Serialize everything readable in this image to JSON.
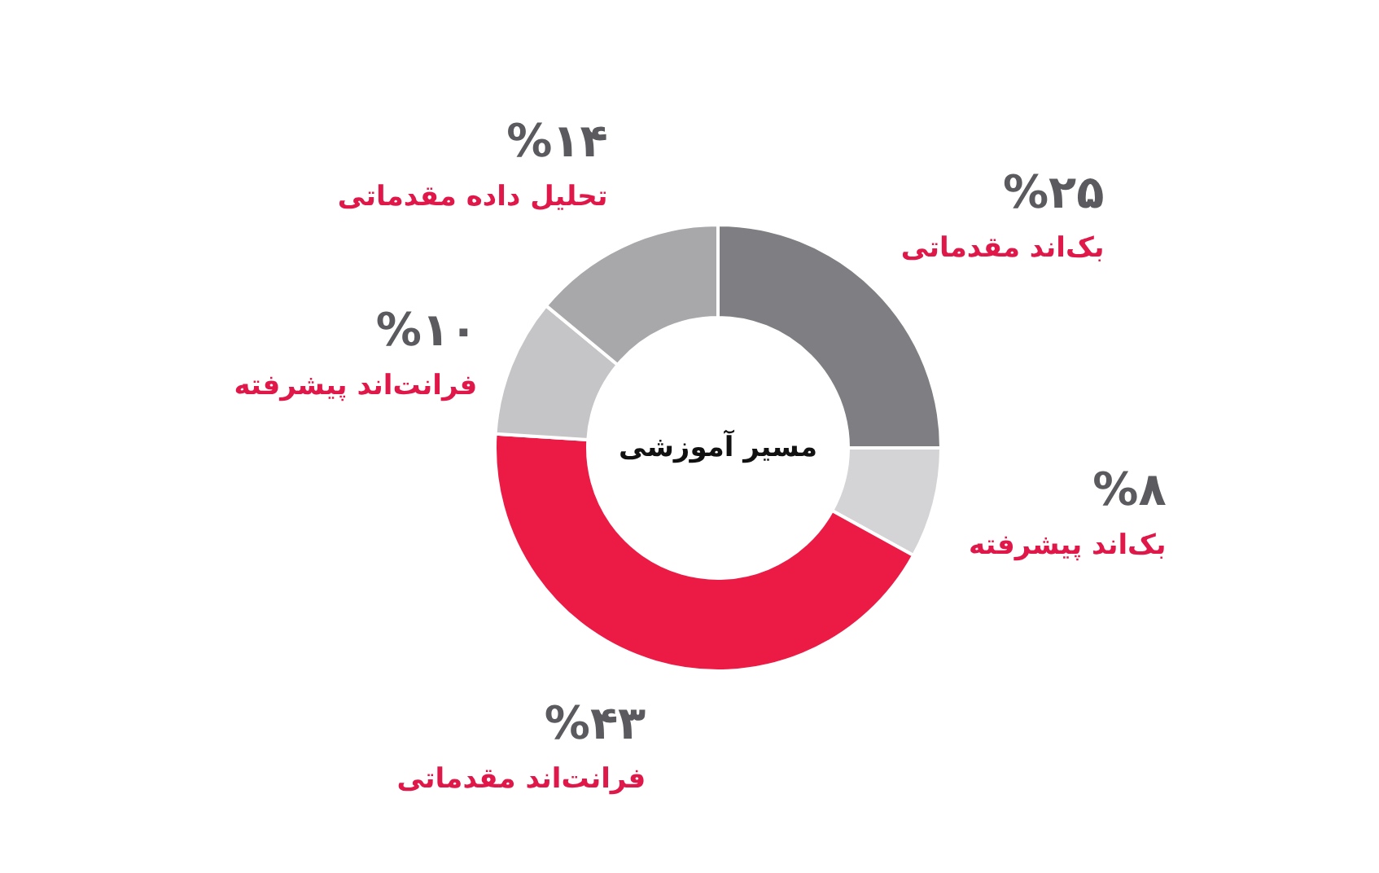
{
  "chart_data": {
    "type": "donut",
    "title": "مسیر آموزشی",
    "categories": [
      "بک‌اند مقدماتی",
      "بک‌اند پیشرفته",
      "فرانت‌اند مقدماتی",
      "فرانت‌اند پیشرفته",
      "تحلیل داده مقدماتی"
    ],
    "values": [
      25,
      8,
      43,
      10,
      14
    ],
    "colors": [
      "#7f7f83",
      "#d4d4d6",
      "#ec1b45",
      "#c5c5c7",
      "#a8a8ab"
    ],
    "value_labels": [
      "%۲۵",
      "%۸",
      "%۴۳",
      "%۱۰",
      "%۱۴"
    ]
  }
}
